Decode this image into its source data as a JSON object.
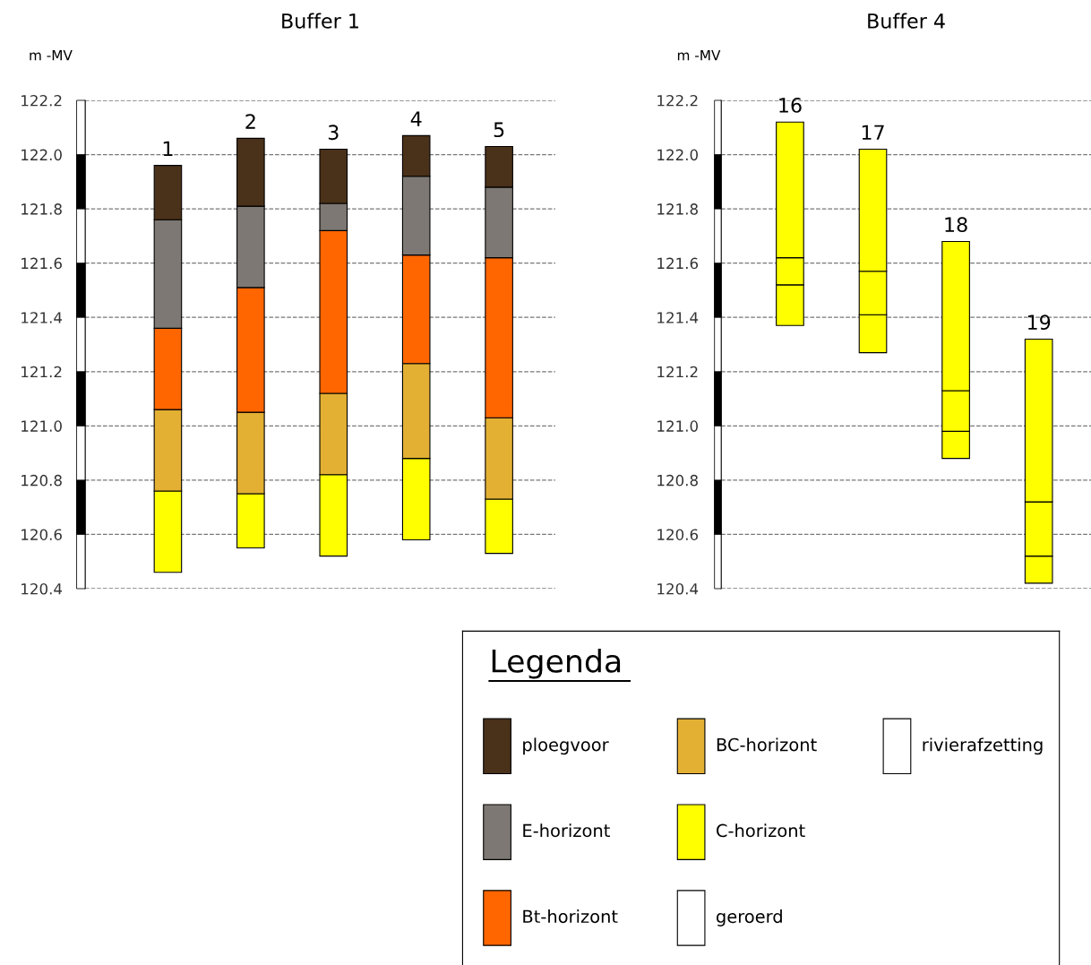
{
  "chart_data": [
    {
      "type": "bar",
      "title": "Buffer 1",
      "ylabel": "m -MV",
      "categories": [
        "1",
        "2",
        "3",
        "4",
        "5"
      ],
      "series": [
        {
          "color": "#ffff00",
          "base": [
            120.46,
            120.55,
            120.52,
            120.58,
            120.53
          ],
          "values": [
            0.3,
            0.2,
            0.3,
            0.3,
            0.2
          ]
        },
        {
          "color": "#e3b033",
          "base": [
            120.76,
            120.75,
            120.82,
            120.88,
            120.73
          ],
          "values": [
            0.3,
            0.3,
            0.3,
            0.35,
            0.3
          ]
        },
        {
          "color": "#ff6600",
          "base": [
            121.06,
            121.05,
            121.12,
            121.23,
            121.03
          ],
          "values": [
            0.3,
            0.46,
            0.6,
            0.4,
            0.59
          ]
        },
        {
          "color": "#7d7873",
          "base": [
            121.36,
            121.51,
            121.72,
            121.63,
            121.62
          ],
          "values": [
            0.4,
            0.3,
            0.1,
            0.29,
            0.26
          ]
        },
        {
          "color": "#4a3119",
          "base": [
            121.76,
            121.81,
            121.82,
            121.92,
            121.88
          ],
          "values": [
            0.2,
            0.25,
            0.2,
            0.15,
            0.15
          ]
        }
      ],
      "ylim": [
        120.4,
        122.2
      ],
      "yticks": [
        {
          "value": 120.4,
          "label": "120.4"
        },
        {
          "value": 120.6,
          "label": "120.6"
        },
        {
          "value": 120.8,
          "label": "120.8"
        },
        {
          "value": 121.0,
          "label": "121.0"
        },
        {
          "value": 121.2,
          "label": "121.2"
        },
        {
          "value": 121.4,
          "label": "121.4"
        },
        {
          "value": 121.6,
          "label": "121.6"
        },
        {
          "value": 121.8,
          "label": "121.8"
        },
        {
          "value": 122.0,
          "label": "122.0"
        },
        {
          "value": 122.2,
          "label": "122.2"
        }
      ],
      "grid": "y"
    },
    {
      "type": "bar",
      "title": "Buffer 4",
      "ylabel": "m -MV",
      "categories": [
        "16",
        "17",
        "18",
        "19"
      ],
      "series": [
        {
          "color": "#ffff00",
          "base": [
            121.37,
            121.27,
            120.88,
            120.42
          ],
          "values": [
            0.15,
            0.14,
            0.1,
            0.1
          ]
        },
        {
          "color": "#ffff00",
          "base": [
            121.52,
            121.41,
            120.98,
            120.52
          ],
          "values": [
            0.1,
            0.16,
            0.15,
            0.2
          ]
        },
        {
          "color": "#ffff00",
          "base": [
            121.62,
            121.57,
            121.13,
            120.72
          ],
          "values": [
            0.5,
            0.45,
            0.55,
            0.6
          ]
        }
      ],
      "ylim": [
        120.4,
        122.2
      ],
      "yticks": [
        {
          "value": 120.4,
          "label": "120.4"
        },
        {
          "value": 120.6,
          "label": "120.6"
        },
        {
          "value": 120.8,
          "label": "120.8"
        },
        {
          "value": 121.0,
          "label": "121.0"
        },
        {
          "value": 121.2,
          "label": "121.2"
        },
        {
          "value": 121.4,
          "label": "121.4"
        },
        {
          "value": 121.6,
          "label": "121.6"
        },
        {
          "value": 121.8,
          "label": "121.8"
        },
        {
          "value": 122.0,
          "label": "122.0"
        },
        {
          "value": 122.2,
          "label": "122.2"
        }
      ],
      "grid": "y"
    },
    {
      "type": "other",
      "title": "Legenda",
      "categories": [
        "ploegvoor",
        "E-horizont",
        "Bt-horizont",
        "BC-horizont",
        "C-horizont",
        "geroerd",
        "rivierafzetting"
      ],
      "colors": [
        "#4a3119",
        "#7d7873",
        "#ff6600",
        "#e3b033",
        "#ffff00",
        "#ffffff",
        "#ffffff"
      ]
    }
  ]
}
